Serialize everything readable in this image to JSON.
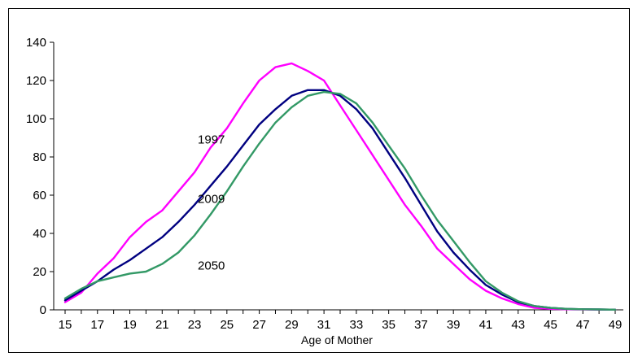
{
  "chart_data": {
    "type": "line",
    "title": "",
    "xlabel": "Age of Mother",
    "ylabel": "",
    "xlim": [
      15,
      49
    ],
    "ylim": [
      0,
      140
    ],
    "yticks": [
      "0",
      "20",
      "40",
      "60",
      "80",
      "100",
      "120",
      "140"
    ],
    "xticks": [
      "15",
      "17",
      "19",
      "21",
      "23",
      "25",
      "27",
      "29",
      "31",
      "33",
      "35",
      "37",
      "39",
      "41",
      "43",
      "45",
      "47",
      "49"
    ],
    "grid": false,
    "legend": "inline labels",
    "x": [
      15,
      16,
      17,
      18,
      19,
      20,
      21,
      22,
      23,
      24,
      25,
      26,
      27,
      28,
      29,
      30,
      31,
      32,
      33,
      34,
      35,
      36,
      37,
      38,
      39,
      40,
      41,
      42,
      43,
      44,
      45,
      46,
      47,
      48,
      49
    ],
    "series": [
      {
        "name": "1997",
        "color": "#ff00ff",
        "values": [
          4,
          9,
          19,
          27,
          38,
          46,
          52,
          62,
          72,
          85,
          95,
          108,
          120,
          127,
          129,
          125,
          120,
          107,
          94,
          81,
          68,
          55,
          44,
          32,
          24,
          16,
          10,
          6,
          3,
          1,
          0.5,
          0.3,
          0.2,
          0.1,
          0.1
        ]
      },
      {
        "name": "2009",
        "color": "#000080",
        "values": [
          5,
          10,
          15,
          21,
          26,
          32,
          38,
          46,
          55,
          65,
          75,
          86,
          97,
          105,
          112,
          115,
          115,
          112,
          105,
          95,
          82,
          69,
          55,
          41,
          30,
          21,
          13,
          8,
          4,
          2,
          1,
          0.5,
          0.3,
          0.2,
          0.1
        ]
      },
      {
        "name": "2050",
        "color": "#339966",
        "values": [
          6,
          11,
          15,
          17,
          19,
          20,
          24,
          30,
          39,
          50,
          62,
          75,
          87,
          98,
          106,
          112,
          114,
          113,
          108,
          98,
          86,
          74,
          60,
          47,
          36,
          25,
          15,
          9,
          4.5,
          2,
          1,
          0.5,
          0.3,
          0.2,
          0.1
        ]
      }
    ],
    "labels": [
      {
        "text": "1997",
        "x": 23.2,
        "y": 87
      },
      {
        "text": "2009",
        "x": 23.2,
        "y": 56
      },
      {
        "text": "2050",
        "x": 23.2,
        "y": 21
      }
    ]
  }
}
